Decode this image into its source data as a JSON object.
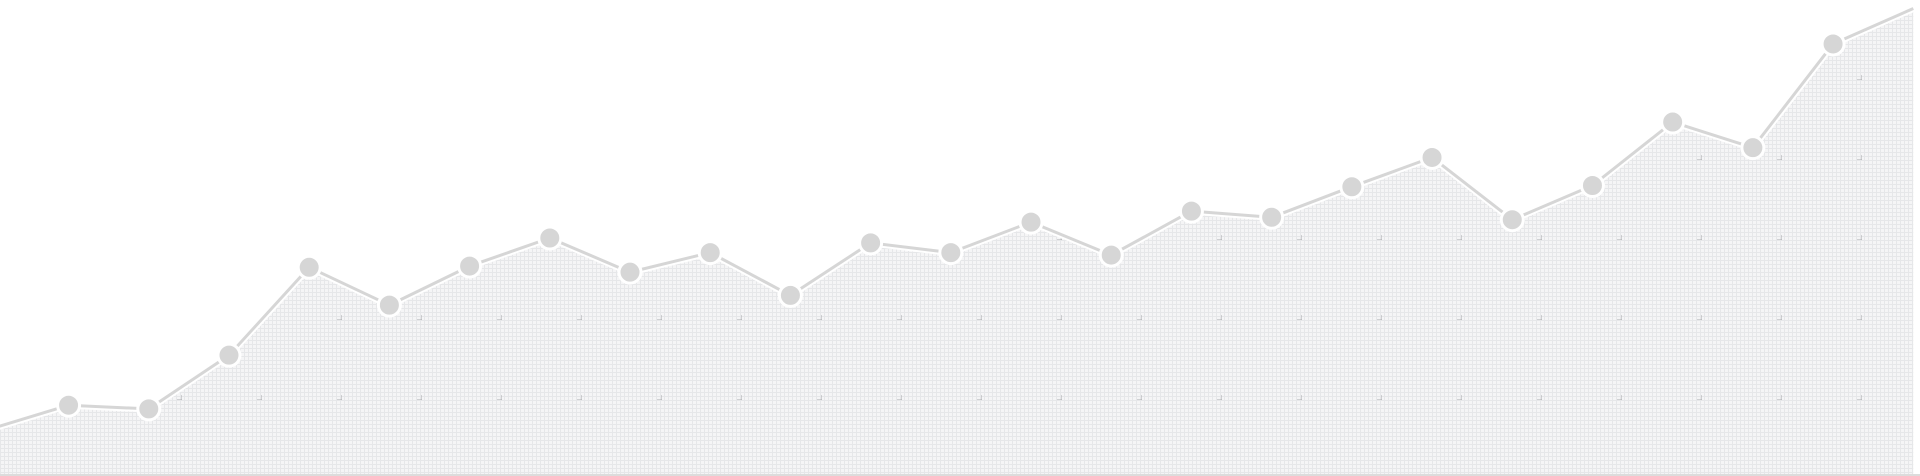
{
  "chart_data": {
    "type": "area",
    "values": [
      38,
      58,
      55,
      99,
      171,
      140,
      172,
      195,
      167,
      183,
      148,
      191,
      183,
      208,
      181,
      217,
      212,
      237,
      261,
      210,
      238,
      290,
      269,
      354,
      383
    ],
    "ylim": [
      0,
      390
    ],
    "color": "#d6d6d6",
    "grid": true
  }
}
